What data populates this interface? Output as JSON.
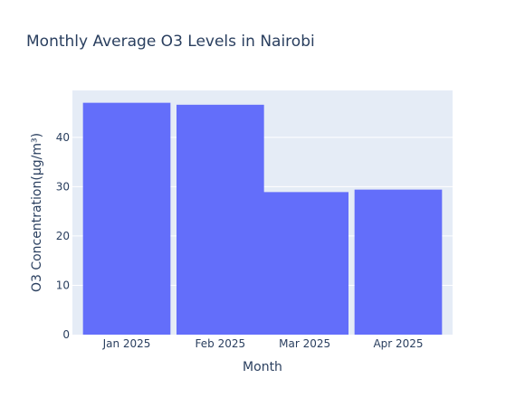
{
  "colors": {
    "bar": "#636efa",
    "plot_background": "#e5ecf6",
    "gridline": "#ffffff",
    "text": "#2a3f5f"
  },
  "chart_data": {
    "type": "bar",
    "title": "Monthly Average O3 Levels in Nairobi",
    "xlabel": "Month",
    "ylabel": "O3 Concentration(µg/m³)",
    "x": [
      "2025-01-01",
      "2025-02-01",
      "2025-03-01",
      "2025-04-01"
    ],
    "x_tick_labels": [
      "Jan 2025",
      "Feb 2025",
      "Mar 2025",
      "Apr 2025"
    ],
    "values": [
      47.0,
      46.6,
      28.9,
      29.4
    ],
    "ylim": [
      0,
      49.5
    ],
    "y_ticks": [
      0,
      10,
      20,
      30,
      40
    ],
    "grid": true,
    "legend": false
  }
}
